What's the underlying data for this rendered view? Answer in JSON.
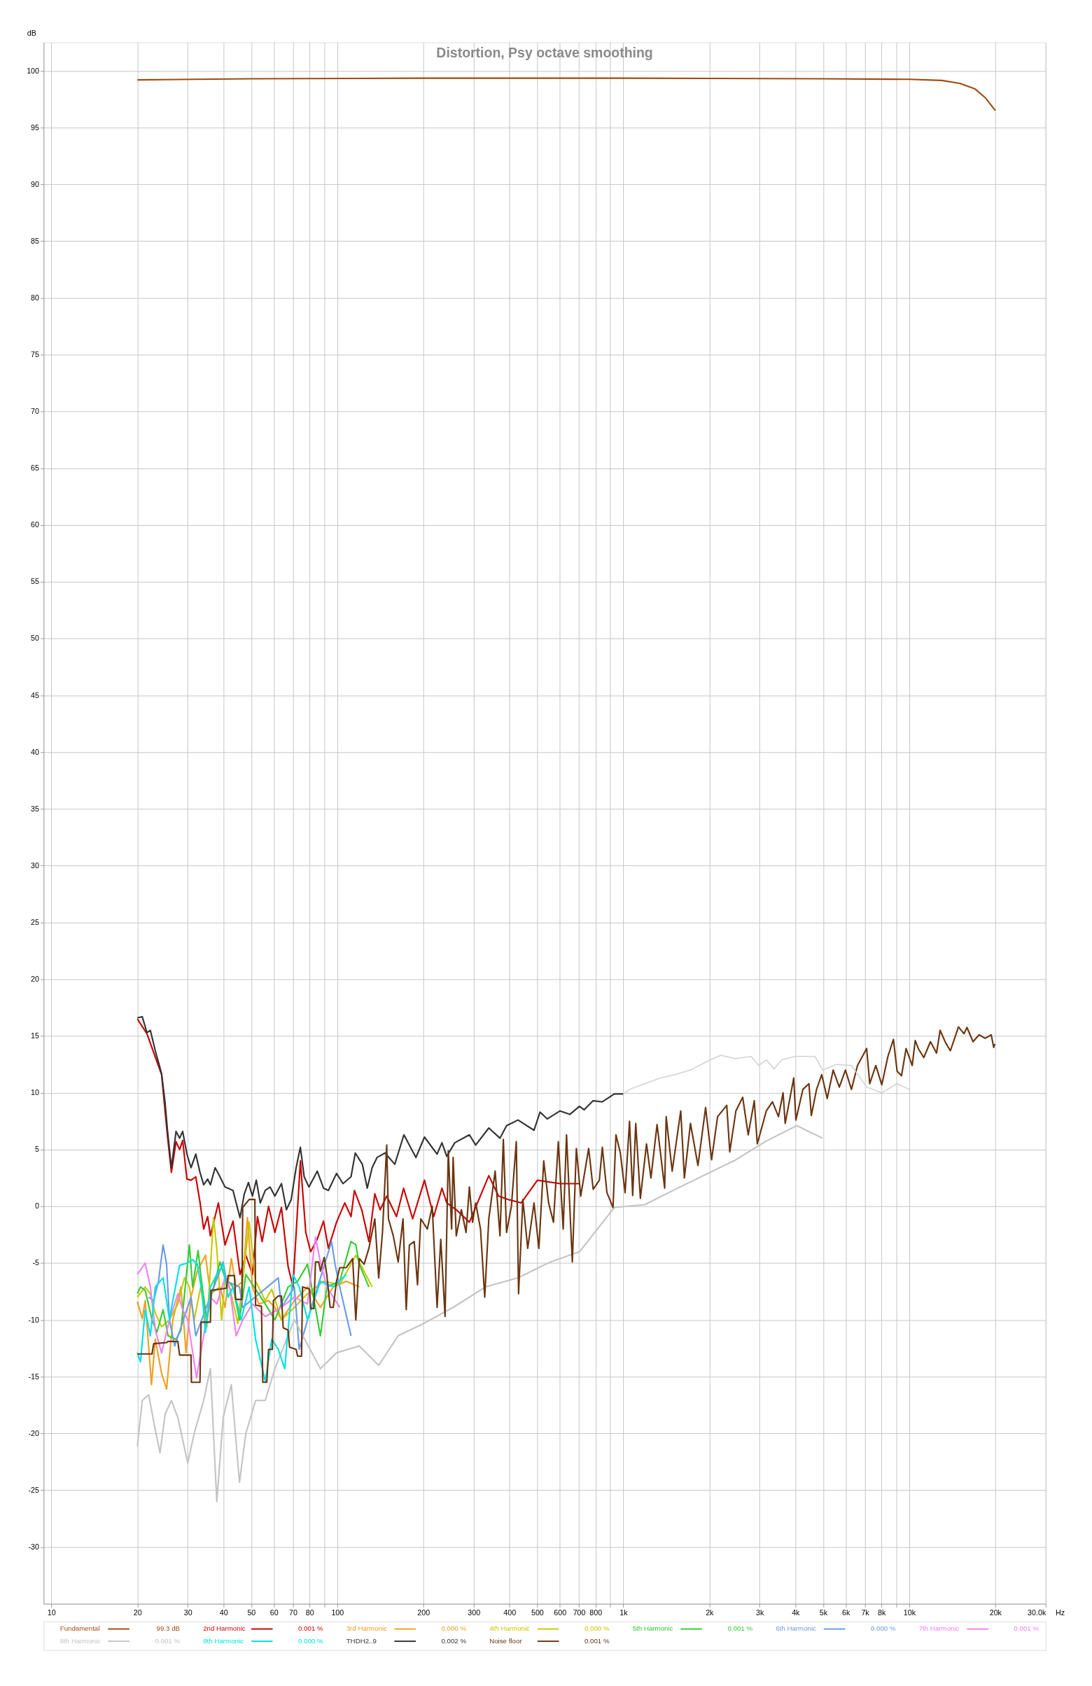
{
  "chart_data": {
    "type": "line",
    "title": "Distortion, Psy octave smoothing",
    "ylabel": "dB",
    "log": "x",
    "grid": true,
    "legend": "bottom",
    "line_style": "solid",
    "xlim": [
      9.4,
      30000
    ],
    "ylim": [
      -35,
      102.5
    ],
    "xticks": [
      10,
      20,
      30,
      40,
      50,
      60,
      70,
      80,
      {
        "value": 90,
        "label": null
      },
      100,
      200,
      300,
      400,
      500,
      600,
      700,
      800,
      {
        "value": 900,
        "label": null
      },
      {
        "value": 1000,
        "label": "1k"
      },
      {
        "value": 2000,
        "label": "2k"
      },
      {
        "value": 3000,
        "label": "3k"
      },
      {
        "value": 4000,
        "label": "4k"
      },
      {
        "value": 5000,
        "label": "5k"
      },
      {
        "value": 6000,
        "label": "6k"
      },
      {
        "value": 7000,
        "label": "7k"
      },
      {
        "value": 8000,
        "label": "8k"
      },
      {
        "value": 9000,
        "label": null
      },
      {
        "value": 10000,
        "label": "10k"
      },
      {
        "value": 20000,
        "label": "20k"
      },
      {
        "value": 30000,
        "label": "30.0k"
      }
    ],
    "xlabel": "Hz",
    "yticks": [
      -30,
      -25,
      -20,
      -15,
      -10,
      -5,
      0,
      5,
      10,
      15,
      20,
      25,
      30,
      35,
      40,
      45,
      50,
      55,
      60,
      65,
      70,
      75,
      80,
      85,
      90,
      95,
      100
    ],
    "annotations": [
      "99.3 dB",
      "0.001 %",
      "0.000 %",
      "0.000 %",
      "0.001 %",
      "0.000 %",
      "0.001 %",
      "0.001 %",
      "0.000 %",
      "0.002 %",
      "0.001 %"
    ],
    "series": [
      {
        "name": "Fundamental",
        "color": "#a04b12",
        "x": [
          20,
          50,
          200,
          1000,
          5000,
          10000,
          13000,
          15000,
          17000,
          18500,
          20000
        ],
        "values": [
          99.2,
          99.3,
          99.35,
          99.35,
          99.3,
          99.25,
          99.15,
          98.9,
          98.4,
          97.6,
          96.5
        ]
      },
      {
        "name": "2nd Harmonic",
        "color": "#cc0000",
        "x": [
          20,
          21.6,
          24.3,
          25.5,
          26.3,
          27.3,
          28.1,
          28.8,
          29.8,
          30.8,
          32.0,
          33.1,
          34.1,
          35.2,
          36.0,
          38.4,
          40.5,
          43.2,
          45.7,
          47.9,
          50.5,
          52.6,
          54.6,
          57.5,
          60.5,
          63.8,
          67.3,
          70.0,
          74.3,
          77.6,
          80.7,
          85.1,
          89.5,
          93.1,
          99.4,
          106.2,
          111.7,
          114.8,
          121.8,
          129.0,
          135.3,
          141.3,
          148.9,
          161.1,
          170.6,
          183.5,
          201.8,
          217.5,
          232.3,
          241.5,
          260.7,
          289.7,
          338.8,
          366.4,
          396.3,
          439.5,
          501.2,
          601.2,
          703
        ],
        "values": [
          16.5,
          15.2,
          11.6,
          6.1,
          3.0,
          5.7,
          5.0,
          5.8,
          2.4,
          2.3,
          2.6,
          0.4,
          -2.0,
          -0.9,
          -2.6,
          0.3,
          -3.4,
          -1.3,
          -6.0,
          -4.3,
          -6.0,
          -0.9,
          -3.1,
          0.0,
          -2.3,
          -0.1,
          -5.3,
          -7.1,
          4.0,
          -2.3,
          -4.0,
          -2.9,
          -1.3,
          -3.7,
          -1.4,
          0.3,
          -0.9,
          1.4,
          -0.3,
          -3.1,
          1.1,
          -0.3,
          0.9,
          -0.9,
          1.6,
          -1.1,
          2.3,
          -0.9,
          1.6,
          0.3,
          -0.3,
          -1.4,
          2.7,
          0.9,
          0.6,
          0.3,
          2.3,
          2.0,
          2.0
        ]
      },
      {
        "name": "3rd Harmonic",
        "color": "#f0a020",
        "x": [
          20.0,
          20.8,
          21.3,
          22.4,
          23.1,
          24.3,
          25.3,
          26.6,
          28.4,
          29.6,
          30.8,
          32.4,
          34.6,
          36.0,
          38.9,
          40.5,
          42.6,
          44.3,
          46.7,
          48.5,
          50.5,
          53.2,
          57.5,
          60.5,
          63.8,
          70.8,
          78.7,
          87.3,
          96.8,
          107.5,
          119.4
        ],
        "values": [
          -8.4,
          -9.9,
          -8.3,
          -15.7,
          -11.7,
          -14.7,
          -16.1,
          -10.0,
          -7.1,
          -12.9,
          -8.0,
          -5.7,
          -4.3,
          -7.7,
          -7.1,
          -8.9,
          -4.6,
          -7.1,
          -6.6,
          -1.0,
          -7.1,
          -8.6,
          -8.3,
          -8.9,
          -10.0,
          -8.3,
          -7.1,
          -8.9,
          -7.1,
          -6.6,
          -7.1
        ]
      },
      {
        "name": "4th Harmonic",
        "color": "#c8c800",
        "x": [
          20.0,
          21.3,
          22.2,
          23.1,
          24.3,
          25.9,
          27.7,
          29.2,
          30.4,
          31.6,
          33.3,
          35.0,
          36.9,
          37.9,
          39.4,
          40.5,
          42.0,
          44.9,
          46.7,
          49.2,
          51.8,
          56.0,
          59.0,
          63.8,
          70.8,
          78.7,
          89.5,
          102.0,
          116.1,
          132.4
        ],
        "values": [
          -8.0,
          -7.1,
          -7.7,
          -9.4,
          -10.6,
          -10.0,
          -8.6,
          -6.3,
          -7.1,
          -10.0,
          -7.1,
          -10.6,
          -1.0,
          -3.7,
          -10.0,
          -6.3,
          -7.1,
          -10.3,
          -6.6,
          -1.4,
          -6.6,
          -8.3,
          -7.3,
          -10.0,
          -8.9,
          -7.7,
          -6.6,
          -6.9,
          -4.3,
          -7.1
        ]
      },
      {
        "name": "5th Harmonic",
        "color": "#33cc33",
        "x": [
          20.0,
          20.5,
          21.3,
          22.5,
          23.4,
          24.6,
          25.6,
          27.3,
          28.4,
          30.4,
          31.2,
          32.6,
          33.7,
          35.0,
          36.4,
          38.9,
          40.5,
          43.2,
          45.5,
          47.9,
          51.2,
          56.0,
          60.5,
          67.3,
          72.7,
          78.7,
          87.3,
          91.9,
          102.0,
          111.7,
          116.1,
          119.4,
          129.0
        ],
        "values": [
          -7.7,
          -7.1,
          -7.4,
          -10.0,
          -11.1,
          -9.1,
          -11.4,
          -11.7,
          -10.9,
          -3.4,
          -7.1,
          -3.9,
          -7.1,
          -10.0,
          -7.7,
          -4.9,
          -6.3,
          -7.1,
          -10.0,
          -6.0,
          -7.1,
          -8.6,
          -10.0,
          -7.1,
          -6.6,
          -5.1,
          -11.4,
          -7.1,
          -6.6,
          -3.1,
          -3.4,
          -5.1,
          -7.1
        ]
      },
      {
        "name": "6th Harmonic",
        "color": "#6a9be8",
        "x": [
          21.9,
          22.8,
          23.7,
          24.6,
          25.3,
          25.9,
          27.0,
          30.8,
          32.0,
          39.9,
          41.0,
          45.5,
          46.7,
          62.2,
          63.8,
          70.8,
          73.6,
          78.7,
          95.5,
          98.2,
          102.0,
          111.7
        ],
        "values": [
          -8.0,
          -8.3,
          -6.6,
          -3.4,
          -5.1,
          -10.0,
          -12.3,
          -8.0,
          -11.4,
          -4.9,
          -6.6,
          -7.1,
          -8.9,
          -6.3,
          -8.9,
          -7.1,
          -12.6,
          -10.0,
          -3.1,
          -5.1,
          -7.1,
          -11.4
        ]
      },
      {
        "name": "7th Harmonic",
        "color": "#f080f0",
        "x": [
          20.0,
          21.3,
          22.2,
          23.1,
          24.3,
          25.9,
          27.7,
          28.8,
          30.0,
          32.2,
          33.3,
          36.0,
          37.9,
          40.5,
          42.0,
          44.3,
          46.7,
          50.5,
          56.0,
          63.8,
          70.8,
          78.7,
          83.9,
          87.3,
          91.9,
          102.0
        ],
        "values": [
          -6.0,
          -5.0,
          -7.1,
          -10.9,
          -12.9,
          -10.0,
          -7.7,
          -9.1,
          -10.0,
          -15.1,
          -12.9,
          -8.0,
          -8.6,
          -6.3,
          -7.1,
          -11.4,
          -10.0,
          -8.6,
          -9.7,
          -8.9,
          -8.0,
          -8.6,
          -2.7,
          -4.9,
          -7.1,
          -8.9
        ]
      },
      {
        "name": "8th Harmonic",
        "color": "#c4c4c4",
        "x": [
          20.0,
          20.8,
          21.9,
          23.1,
          24.0,
          25.0,
          26.3,
          27.7,
          30.0,
          31.6,
          34.1,
          36.0,
          37.9,
          39.9,
          42.6,
          45.5,
          47.9,
          51.8,
          56.0,
          60.5,
          70.8,
          87.3,
          99.4,
          119.4,
          139.6,
          163.3,
          201.0,
          254.2,
          329.6,
          428.5,
          556,
          703,
          931,
          1190,
          1520,
          1941,
          2477,
          3164,
          4046,
          4980
        ],
        "values": [
          -21.1,
          -17.1,
          -16.6,
          -19.7,
          -21.7,
          -18.3,
          -17.1,
          -18.6,
          -22.6,
          -20.0,
          -17.1,
          -14.3,
          -26.0,
          -18.6,
          -15.7,
          -24.3,
          -20.0,
          -17.1,
          -17.1,
          -14.3,
          -10.0,
          -14.3,
          -12.9,
          -12.3,
          -14.0,
          -11.4,
          -10.3,
          -8.9,
          -7.1,
          -6.3,
          -4.9,
          -4.0,
          -0.1,
          0.15,
          1.5,
          2.8,
          4.1,
          5.75,
          7.1,
          6.0
        ]
      },
      {
        "name": "9th Harmonic",
        "color": "#00e0e8",
        "x": [
          20.0,
          20.5,
          21.3,
          22.2,
          23.1,
          24.6,
          25.9,
          26.6,
          28.1,
          29.8,
          31.2,
          32.4,
          33.7,
          34.6,
          36.0,
          37.9,
          39.9,
          41.5,
          43.2,
          46.1,
          49.2,
          51.8,
          56.0,
          59.0,
          62.2,
          65.5,
          70.0,
          73.6,
          78.7,
          87.3,
          96.8,
          107.5
        ],
        "values": [
          -12.9,
          -13.7,
          -9.1,
          -11.4,
          -7.1,
          -6.3,
          -10.0,
          -8.3,
          -5.2,
          -5.0,
          -4.7,
          -5.1,
          -7.7,
          -11.1,
          -7.1,
          -6.0,
          -5.1,
          -8.0,
          -7.1,
          -10.0,
          -7.1,
          -11.7,
          -15.4,
          -11.7,
          -12.6,
          -14.3,
          -6.0,
          -7.1,
          -10.0,
          -6.6,
          -7.1,
          -6.0
        ]
      },
      {
        "name": "THDH2..9",
        "color": "#333333",
        "x": [
          20.0,
          20.8,
          21.6,
          22.2,
          23.1,
          24.3,
          25.0,
          25.5,
          26.3,
          27.3,
          28.1,
          28.8,
          29.8,
          30.8,
          32.0,
          33.1,
          34.1,
          35.2,
          36.0,
          37.4,
          38.9,
          40.5,
          43.2,
          44.3,
          45.7,
          47.3,
          48.9,
          50.5,
          52.1,
          53.8,
          56.0,
          58.2,
          60.5,
          63.8,
          66.4,
          69.0,
          71.8,
          74.3,
          76.6,
          79.6,
          85.1,
          89.5,
          93.1,
          99.4,
          104.7,
          111.7,
          115.6,
          122.4,
          127.3,
          132.4,
          137.7,
          146.9,
          158.9,
          171.0,
          188.4,
          201.8,
          223.4,
          232.3,
          241.5,
          257.6,
          289.7,
          304.8,
          338.8,
          370.7,
          390.8,
          428.5,
          487.5,
          511.7,
          541.9,
          601.2,
          650.1,
          703,
          730,
          785,
          845,
          931,
          1000
        ],
        "values": [
          16.6,
          16.7,
          15.3,
          15.5,
          13.7,
          11.7,
          9.1,
          6.6,
          3.4,
          6.6,
          6.0,
          6.6,
          4.6,
          3.4,
          4.6,
          3.0,
          1.9,
          2.4,
          1.9,
          3.4,
          2.6,
          1.7,
          1.4,
          0.3,
          -1.0,
          1.1,
          2.1,
          0.9,
          2.3,
          0.3,
          1.4,
          1.7,
          0.9,
          2.0,
          -0.3,
          0.6,
          3.4,
          5.2,
          2.6,
          1.7,
          3.1,
          1.6,
          1.4,
          2.9,
          2.0,
          2.6,
          4.7,
          3.7,
          1.6,
          3.4,
          4.3,
          4.7,
          3.7,
          6.3,
          4.3,
          6.1,
          4.6,
          5.6,
          4.4,
          5.6,
          6.3,
          5.4,
          6.9,
          6.0,
          7.1,
          7.6,
          6.7,
          8.3,
          7.7,
          8.4,
          8.1,
          8.8,
          8.5,
          9.3,
          9.2,
          9.9,
          9.9
        ]
      },
      {
        "name": "Noise floor",
        "color": "#6b3510",
        "x": [
          20.0,
          22.5,
          22.8,
          25.3,
          25.6,
          27.7,
          28.1,
          30.8,
          30.9,
          33.1,
          33.4,
          36.0,
          36.2,
          38.9,
          41.0,
          41.5,
          43.7,
          44.1,
          46.4,
          46.7,
          49.2,
          51.5,
          51.8,
          54.3,
          54.9,
          56.7,
          57.5,
          59.3,
          59.8,
          62.2,
          63.8,
          64.7,
          67.3,
          68.1,
          71.8,
          72.7,
          75.0,
          75.6,
          80.0,
          80.7,
          82.8,
          83.9,
          86.1,
          87.3,
          90.0,
          91.9,
          94.4,
          96.8,
          99.4,
          102.0,
          107.5,
          113.2,
          116.1,
          119.4,
          124.1,
          129.0,
          135.3,
          139.6,
          143.9,
          148.9,
          151.0,
          157.0,
          163.3,
          169.8,
          174.2,
          178.7,
          185.8,
          190.8,
          195.9,
          206.5,
          214.8,
          223.4,
          230.1,
          238.2,
          244.5,
          251.1,
          254.2,
          260.7,
          271.6,
          282.1,
          289.7,
          297.2,
          304.8,
          316.9,
          327.8,
          338.8,
          356.5,
          370.7,
          380.8,
          390.8,
          406.4,
          422.7,
          430.5,
          445.6,
          463.4,
          487.5,
          507.0,
          527.2,
          548.3,
          570.2,
          592.9,
          616.6,
          633.4,
          663.7,
          685.5,
          710,
          757,
          785,
          825,
          845,
          877,
          921,
          943,
          977,
          1015,
          1052,
          1079,
          1106,
          1148,
          1206,
          1250,
          1313,
          1396,
          1413,
          1483,
          1589,
          1636,
          1718,
          1825,
          1941,
          2037,
          2138,
          2301,
          2358,
          2477,
          2616,
          2735,
          2872,
          2943,
          3164,
          3325,
          3491,
          3622,
          3684,
          3946,
          4015,
          4249,
          4460,
          4547,
          4743,
          4944,
          5167,
          5422,
          5697,
          5982,
          6281,
          6594,
          7098,
          7278,
          7641,
          8021,
          8425,
          8806,
          9073,
          9401,
          9751,
          10245,
          10497,
          10757,
          11245,
          11866,
          12461,
          12826,
          13410,
          13930,
          14870,
          15540,
          15920,
          16720,
          17550,
          18430,
          19360,
          19740,
          19940
        ],
        "values": [
          -13.0,
          -13.0,
          -12.1,
          -12.0,
          -11.9,
          -11.9,
          -13.1,
          -13.1,
          -15.5,
          -15.5,
          -10.2,
          -10.2,
          -7.4,
          -7.3,
          -7.2,
          -6.1,
          -6.1,
          -8.2,
          -8.2,
          -0.1,
          0.6,
          0.6,
          -8.7,
          -8.8,
          -15.5,
          -15.5,
          -12.6,
          -12.6,
          -8.3,
          -7.9,
          -7.9,
          -10.7,
          -10.9,
          -12.4,
          -12.6,
          -13.2,
          -13.2,
          -7.1,
          -7.3,
          -9.0,
          -9.0,
          -4.9,
          -4.9,
          -5.7,
          -4.5,
          -6.0,
          -8.9,
          -8.9,
          -6.6,
          -5.4,
          -5.4,
          -4.6,
          -10.0,
          -4.6,
          -5.1,
          -3.7,
          -1.1,
          -6.3,
          -2.3,
          5.4,
          -1.1,
          -2.6,
          -4.9,
          -1.1,
          -9.1,
          -3.4,
          -3.1,
          -6.9,
          -1.1,
          -2.0,
          0.0,
          -8.9,
          -2.9,
          -9.7,
          4.9,
          -2.0,
          4.3,
          -2.6,
          -0.3,
          -2.3,
          1.7,
          -1.4,
          0.3,
          -2.0,
          -8.0,
          -1.1,
          3.1,
          -2.6,
          5.9,
          -2.3,
          0.0,
          5.7,
          -7.7,
          0.6,
          -3.7,
          0.3,
          -3.7,
          4.0,
          0.3,
          -1.4,
          5.7,
          -2.0,
          6.3,
          -4.9,
          5.1,
          0.9,
          5.1,
          1.5,
          2.3,
          5.2,
          1.2,
          -0.1,
          6.3,
          4.7,
          1.2,
          7.5,
          0.95,
          7.3,
          0.7,
          5.5,
          2.5,
          7.2,
          1.6,
          7.9,
          3.1,
          8.4,
          2.5,
          7.3,
          3.6,
          8.7,
          4.1,
          7.9,
          8.9,
          4.8,
          8.4,
          9.6,
          6.3,
          9.3,
          5.5,
          8.4,
          9.2,
          7.9,
          10.0,
          7.3,
          11.3,
          7.6,
          10.3,
          10.8,
          8.0,
          10.3,
          11.6,
          9.5,
          12.0,
          10.5,
          12.0,
          10.3,
          12.4,
          13.9,
          10.8,
          12.4,
          10.7,
          13.2,
          14.7,
          11.9,
          11.5,
          13.9,
          12.4,
          14.6,
          13.9,
          13.1,
          14.5,
          13.5,
          15.5,
          14.4,
          13.7,
          15.8,
          15.2,
          15.75,
          14.5,
          15.1,
          14.8,
          15.1,
          14.0,
          14.3
        ]
      },
      {
        "color": "#d2d2d2",
        "x": [
          1000,
          1052,
          1190,
          1345,
          1520,
          1718,
          2010,
          2194,
          2478,
          2800,
          2977,
          3168,
          3367,
          3580,
          3994,
          4686,
          4980,
          5560,
          6283,
          7099,
          8017,
          9059,
          10000
        ],
        "values": [
          9.9,
          10.3,
          10.8,
          11.3,
          11.6,
          12.0,
          12.9,
          13.3,
          13.0,
          13.2,
          12.4,
          12.9,
          12.1,
          12.9,
          13.2,
          13.2,
          12.0,
          12.5,
          12.4,
          10.5,
          10.0,
          10.8,
          10.3
        ]
      }
    ]
  }
}
